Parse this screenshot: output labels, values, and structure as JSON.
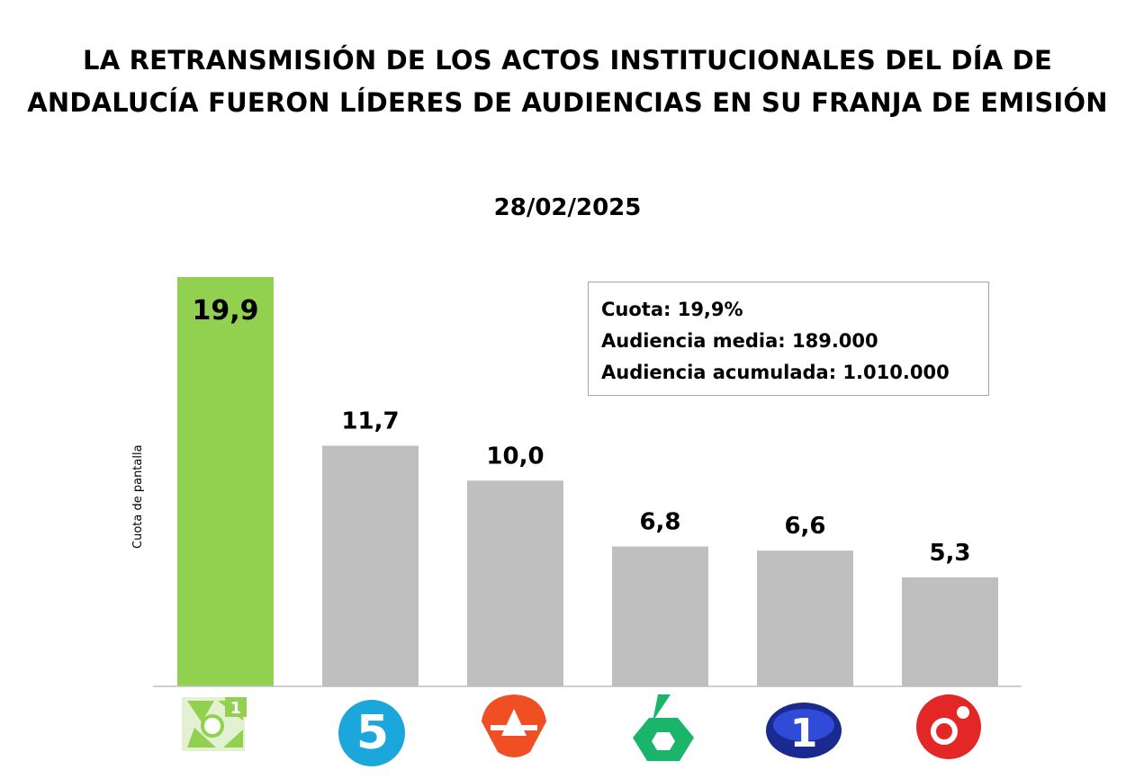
{
  "title_lines": [
    "LA RETRANSMISIÓN DE LOS ACTOS INSTITUCIONALES DEL DÍA DE",
    "ANDALUCÍA FUERON LÍDERES DE AUDIENCIAS EN SU FRANJA DE EMISIÓN"
  ],
  "date": "28/02/2025",
  "info": {
    "cuota": "Cuota: 19,9%",
    "audiencia_media": "Audiencia media: 189.000",
    "audiencia_acumulada": "Audiencia acumulada: 1.010.000"
  },
  "colors": {
    "highlight": "#92d050",
    "default": "#bfbfbf",
    "axis": "#bfbfbf"
  },
  "chart_data": {
    "type": "bar",
    "title": "28/02/2025",
    "xlabel": "",
    "ylabel": "Cuota de pantalla",
    "ylim": [
      0,
      19.9
    ],
    "categories": [
      "Canal Sur 1",
      "Telecinco",
      "Antena 3",
      "La Sexta",
      "La 1",
      "Cuatro"
    ],
    "icons": [
      "canal-sur-1-logo",
      "telecinco-logo",
      "antena-3-logo",
      "la-sexta-logo",
      "la-1-logo",
      "cuatro-logo"
    ],
    "values": [
      19.9,
      11.7,
      10.0,
      6.8,
      6.6,
      5.3
    ],
    "value_labels": [
      "19,9",
      "11,7",
      "10,0",
      "6,8",
      "6,6",
      "5,3"
    ],
    "highlight_index": 0
  }
}
